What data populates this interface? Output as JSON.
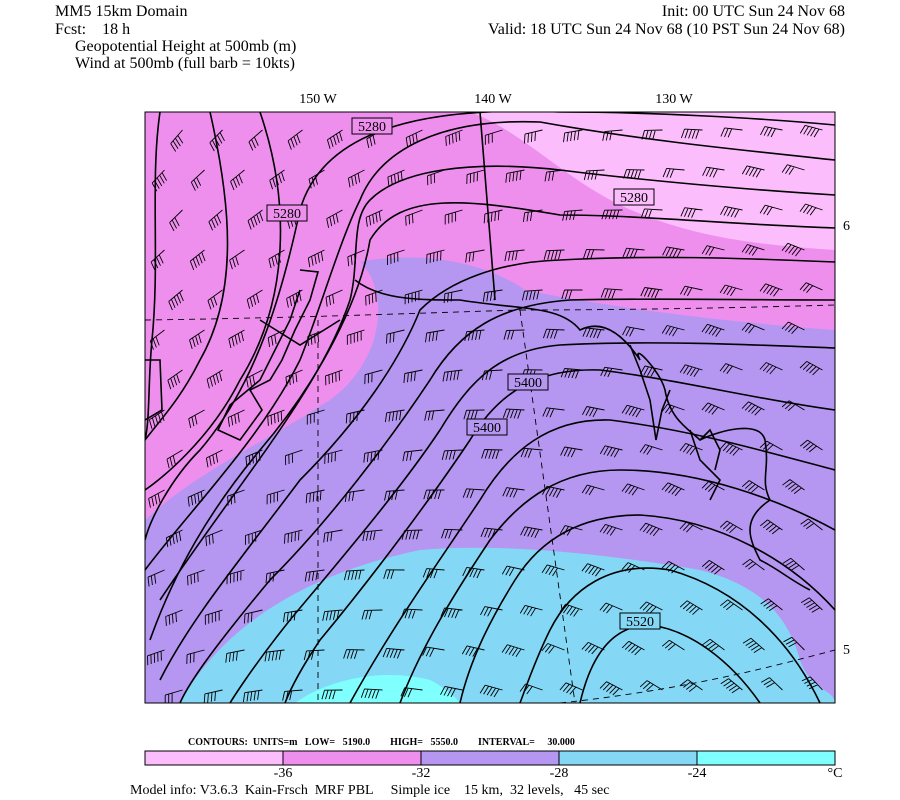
{
  "header": {
    "domain": "MM5 15km Domain",
    "init": "Init: 00 UTC Sun 24 Nov 68",
    "fcst": "Fcst:    18 h",
    "valid": "Valid: 18 UTC Sun 24 Nov 68 (10 PST Sun 24 Nov 68)",
    "field1": "Geopotential Height at 500mb (m)",
    "field2": "Wind at 500mb (full barb = 10kts)"
  },
  "map": {
    "longitudes": [
      "150 W",
      "140 W",
      "130 W"
    ],
    "edge_labels": [
      "6",
      "5"
    ],
    "contour_labels": [
      "5280",
      "5280",
      "5280",
      "5400",
      "5400",
      "5520"
    ]
  },
  "footer": {
    "contours": "CONTOURS:  UNITS=m   LOW=   5190.0        HIGH=   5550.0        INTERVAL=     30.000",
    "colorbar_labels": [
      "-36",
      "-32",
      "-28",
      "-24"
    ],
    "colorbar_unit": "°C",
    "model_info": "Model info: V3.6.3  Kain-Frsch  MRF PBL     Simple ice    15 km,  32 levels,   45 sec"
  }
}
